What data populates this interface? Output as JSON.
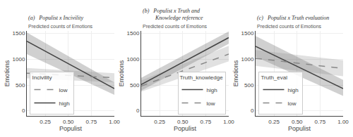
{
  "chart_data": [
    {
      "type": "line",
      "title": "(a)   Populist x Incivility",
      "subtitle": "Predicted counts of Emotions",
      "x_label": "Populist",
      "y_label": "Emotions",
      "legend_title": "Incivility",
      "legend": "lower left",
      "grid": true,
      "x": [
        0.05,
        1.0
      ],
      "xlim": [
        0.05,
        1.0
      ],
      "xticks": [
        0.25,
        {
          "value": 0.5,
          "label": "0.50"
        },
        0.75,
        {
          "value": 1.0,
          "label": "1.00"
        }
      ],
      "ylim": [
        -100,
        1550
      ],
      "yticks": [
        0,
        500,
        1000,
        1500
      ],
      "series": [
        {
          "name": "high",
          "color": "#444444",
          "line_style": "solid",
          "values": [
            1350,
            430
          ],
          "ci_lower": [
            1100,
            310
          ],
          "ci_upper": [
            1520,
            550
          ]
        },
        {
          "name": "low",
          "color": "#888888",
          "line_style": "dashed",
          "values": [
            730,
            640
          ],
          "ci_lower": [
            630,
            550
          ],
          "ci_upper": [
            830,
            730
          ]
        }
      ]
    },
    {
      "type": "line",
      "title": "(b)   Populist x Truth and\n         Knowledge reference",
      "subtitle": "Predicted counts of Emotions",
      "x_label": "Populist",
      "y_label": "Emotions",
      "legend_title": "Truth_knowledge",
      "legend": "lower right",
      "grid": true,
      "x": [
        0.05,
        1.0
      ],
      "xlim": [
        0.05,
        1.0
      ],
      "xticks": [
        0.25,
        {
          "value": 0.5,
          "label": "0.50"
        },
        0.75,
        {
          "value": 1.0,
          "label": "1.00"
        }
      ],
      "ylim": [
        -100,
        1550
      ],
      "yticks": [
        0,
        500,
        1000,
        1500
      ],
      "series": [
        {
          "name": "high",
          "color": "#444444",
          "line_style": "solid",
          "values": [
            510,
            1420
          ],
          "ci_lower": [
            390,
            1300
          ],
          "ci_upper": [
            640,
            1540
          ]
        },
        {
          "name": "low",
          "color": "#888888",
          "line_style": "dashed",
          "values": [
            480,
            1100
          ],
          "ci_lower": [
            370,
            960
          ],
          "ci_upper": [
            590,
            1260
          ]
        }
      ]
    },
    {
      "type": "line",
      "title": "(c)   Populist x Truth evaluation",
      "subtitle": "Predicted counts of Emotions",
      "x_label": "Populist",
      "y_label": "Emotions",
      "legend_title": "Truth_eval",
      "legend": "lower left",
      "grid": true,
      "x": [
        0.05,
        1.0
      ],
      "xlim": [
        0.05,
        1.0
      ],
      "xticks": [
        0.25,
        {
          "value": 0.5,
          "label": "0.50"
        },
        0.75,
        {
          "value": 1.0,
          "label": "1.00"
        }
      ],
      "ylim": [
        -100,
        1550
      ],
      "yticks": [
        0,
        500,
        1000,
        1500
      ],
      "series": [
        {
          "name": "high",
          "color": "#444444",
          "line_style": "solid",
          "values": [
            1250,
            430
          ],
          "ci_lower": [
            1050,
            290
          ],
          "ci_upper": [
            1450,
            600
          ]
        },
        {
          "name": "low",
          "color": "#888888",
          "line_style": "dashed",
          "values": [
            1020,
            820
          ],
          "ci_lower": [
            870,
            670
          ],
          "ci_upper": [
            1180,
            980
          ]
        }
      ]
    }
  ]
}
